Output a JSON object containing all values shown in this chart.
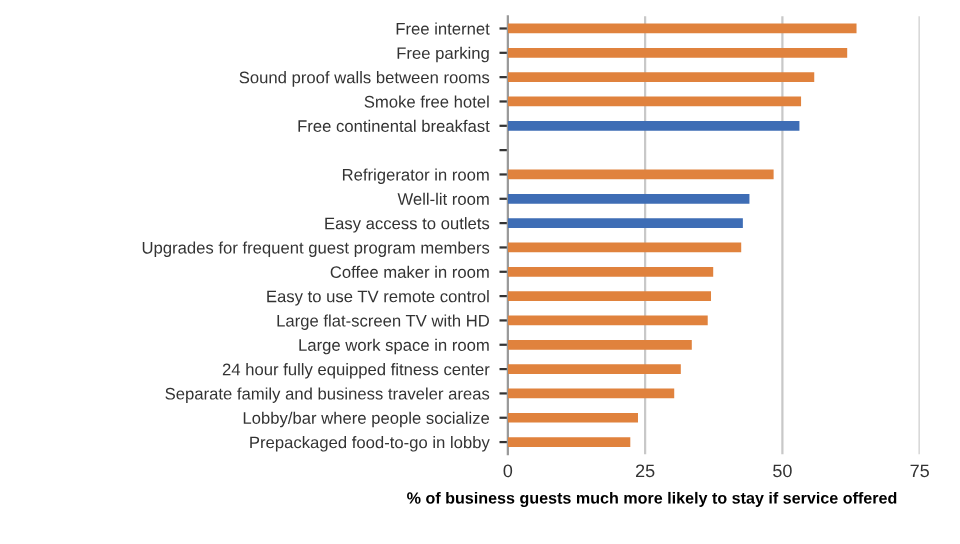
{
  "chart_data": {
    "type": "bar",
    "orientation": "horizontal",
    "xlabel": "% of business guests much more likely to stay if service offered",
    "categories": [
      "Free internet",
      "Free parking",
      "Sound proof walls between rooms",
      "Smoke free hotel",
      "Free continental breakfast",
      null,
      "Refrigerator in room",
      "Well-lit room",
      "Easy access to outlets",
      "Upgrades for frequent guest program members",
      "Coffee maker in room",
      "Easy to use TV remote control",
      "Large flat-screen TV with HD",
      "Large work space in room",
      "24 hour fully equipped fitness center",
      "Separate family and business traveler areas",
      "Lobby/bar where people socialize",
      "Prepackaged food-to-go in lobby"
    ],
    "values": [
      63.5,
      61.8,
      55.8,
      53.4,
      53.1,
      null,
      48.4,
      44.0,
      42.8,
      42.5,
      37.4,
      37.0,
      36.4,
      33.5,
      31.5,
      30.3,
      23.7,
      22.3
    ],
    "colors": [
      "#e0823d",
      "#e0823d",
      "#e0823d",
      "#e0823d",
      "#3e6db5",
      null,
      "#e0823d",
      "#3e6db5",
      "#3e6db5",
      "#e0823d",
      "#e0823d",
      "#e0823d",
      "#e0823d",
      "#e0823d",
      "#e0823d",
      "#e0823d",
      "#e0823d",
      "#e0823d"
    ],
    "xlim": [
      0,
      75
    ],
    "xticks": [
      0,
      25,
      50,
      75
    ],
    "grid": "x"
  }
}
